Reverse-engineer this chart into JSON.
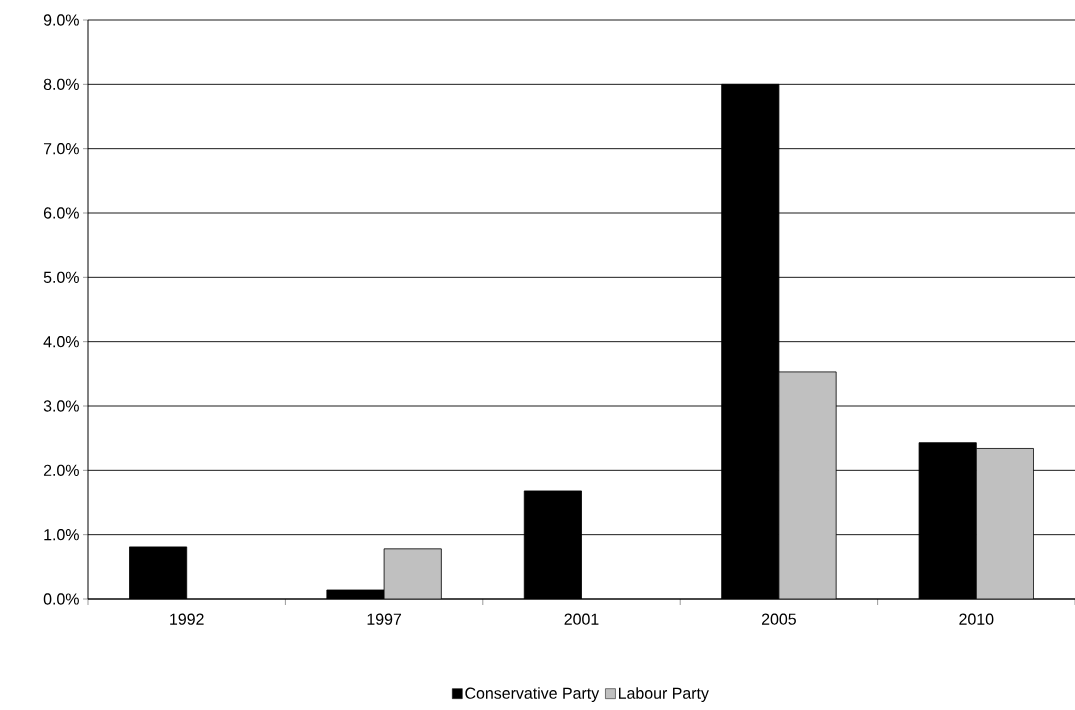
{
  "chart_data": {
    "type": "bar",
    "categories": [
      "1992",
      "1997",
      "2001",
      "2005",
      "2010"
    ],
    "series": [
      {
        "name": "Conservative Party",
        "color": "#000000",
        "values": [
          0.81,
          0.14,
          1.68,
          8.0,
          2.43
        ]
      },
      {
        "name": "Labour Party",
        "color": "#c0c0c0",
        "values": [
          null,
          0.78,
          null,
          3.53,
          2.34
        ]
      }
    ],
    "ylim": [
      0,
      9
    ],
    "yticks": [
      {
        "value": 0,
        "label": "0.0%"
      },
      {
        "value": 1,
        "label": "1.0%"
      },
      {
        "value": 2,
        "label": "2.0%"
      },
      {
        "value": 3,
        "label": "3.0%"
      },
      {
        "value": 4,
        "label": "4.0%"
      },
      {
        "value": 5,
        "label": "5.0%"
      },
      {
        "value": 6,
        "label": "6.0%"
      },
      {
        "value": 7,
        "label": "7.0%"
      },
      {
        "value": 8,
        "label": "8.0%"
      },
      {
        "value": 9,
        "label": "9.0%"
      }
    ],
    "grid": "y",
    "legend": "bottom"
  }
}
